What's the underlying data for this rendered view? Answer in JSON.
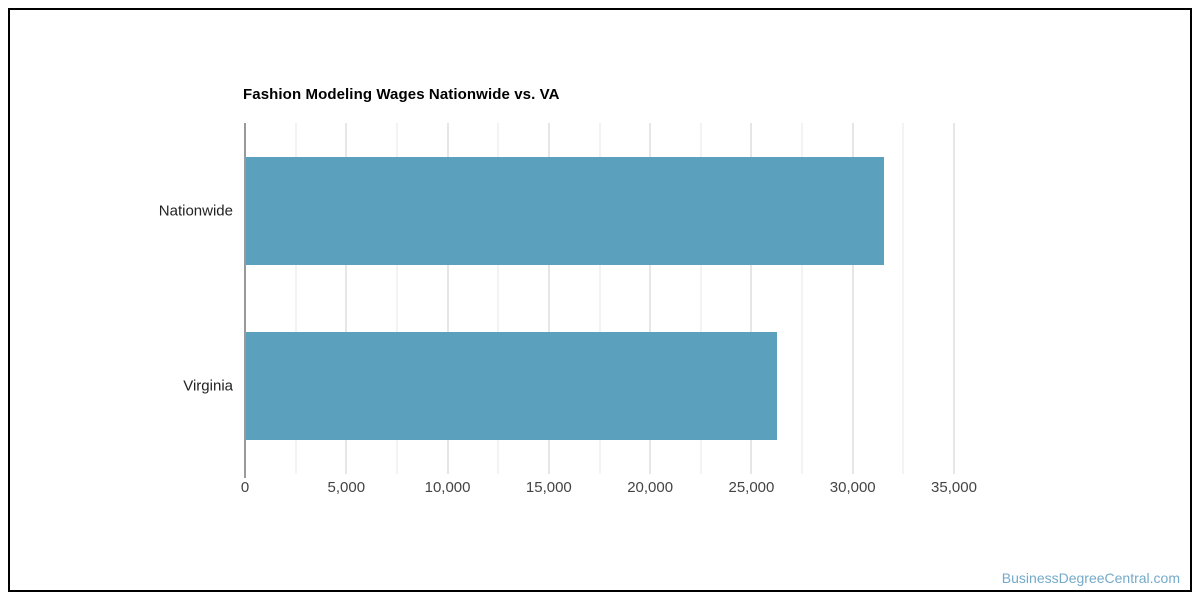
{
  "page": {
    "watermark": "BusinessDegreeCentral.com"
  },
  "colors": {
    "bar": "#5ba0bd",
    "grid_major": "#cccccc",
    "grid_minor": "#e7e7e7",
    "axis_line": "#333333",
    "tick_label": "#444444",
    "category_label": "#222222",
    "title": "#000000",
    "border": "#000000",
    "watermark": "#74aac9"
  },
  "chart_data": {
    "type": "bar",
    "orientation": "horizontal",
    "title": "Fashion Modeling Wages Nationwide vs. VA",
    "categories": [
      "Nationwide",
      "Virginia"
    ],
    "values": [
      31500,
      26200
    ],
    "xlabel": "",
    "ylabel": "",
    "xlim": [
      0,
      35000
    ],
    "x_ticks": [
      0,
      5000,
      10000,
      15000,
      20000,
      25000,
      30000,
      35000
    ],
    "x_tick_labels": [
      "0",
      "5,000",
      "10,000",
      "15,000",
      "20,000",
      "25,000",
      "30,000",
      "35,000"
    ],
    "minor_grid_step": 2500,
    "grid": true,
    "legend": "none",
    "bar_thickness_px": 108
  }
}
